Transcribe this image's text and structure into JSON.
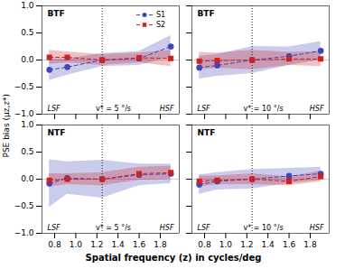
{
  "chart_data": [
    {
      "type": "line",
      "title": "BTF",
      "annotations": [
        "LSF",
        "v* = 5 °/s",
        "HSF"
      ],
      "ylabel": "PSE bias (μz,z*)",
      "legend": "upper right",
      "tick_labels": "y",
      "x": [
        0.75,
        0.92,
        1.25,
        1.6,
        1.9
      ],
      "series": [
        {
          "name": "S1",
          "color": "#4444bb",
          "marker": "circle",
          "line_style": "dashed",
          "values": [
            -0.18,
            -0.13,
            0.0,
            0.03,
            0.25
          ],
          "ylow": [
            -0.38,
            -0.28,
            -0.12,
            -0.1,
            0.05
          ],
          "yhigh": [
            0.02,
            0.02,
            0.12,
            0.16,
            0.45
          ]
        },
        {
          "name": "S2",
          "color": "#cc2222",
          "marker": "square",
          "line_style": "dashed",
          "values": [
            0.05,
            0.05,
            0.0,
            0.04,
            0.03
          ],
          "ylow": [
            -0.08,
            -0.05,
            -0.1,
            -0.05,
            -0.12
          ],
          "yhigh": [
            0.18,
            0.15,
            0.1,
            0.13,
            0.18
          ]
        }
      ],
      "vlines": [
        1.25
      ],
      "hlines": [
        0.0
      ],
      "xlim": [
        0.68,
        1.98
      ],
      "ylim": [
        -1.0,
        1.0
      ],
      "xticks": [
        0.8,
        {
          "value": 1.0,
          "label": "1.0"
        },
        1.2,
        1.4,
        1.6,
        1.8
      ],
      "yticks": [
        {
          "value": -1.0,
          "label": "−1.0"
        },
        {
          "value": -0.5,
          "label": "−0.5"
        },
        {
          "value": 0.0,
          "label": "0.0"
        },
        0.5,
        {
          "value": 1.0,
          "label": "1.0"
        }
      ]
    },
    {
      "type": "line",
      "title": "BTF",
      "annotations": [
        "LSF",
        "v* = 10 °/s",
        "HSF"
      ],
      "tick_labels": false,
      "x": [
        0.75,
        0.92,
        1.25,
        1.6,
        1.9
      ],
      "series": [
        {
          "name": "S1",
          "color": "#4444bb",
          "marker": "circle",
          "line_style": "dashed",
          "values": [
            -0.14,
            -0.1,
            0.0,
            0.07,
            0.17
          ],
          "ylow": [
            -0.35,
            -0.3,
            -0.25,
            -0.1,
            0.0
          ],
          "yhigh": [
            0.07,
            0.1,
            0.25,
            0.24,
            0.34
          ]
        },
        {
          "name": "S2",
          "color": "#cc2222",
          "marker": "square",
          "line_style": "dashed",
          "values": [
            -0.02,
            -0.01,
            0.0,
            0.02,
            0.02
          ],
          "ylow": [
            -0.18,
            -0.15,
            -0.18,
            -0.1,
            -0.12
          ],
          "yhigh": [
            0.14,
            0.13,
            0.18,
            0.14,
            0.16
          ]
        }
      ],
      "vlines": [
        1.25
      ],
      "hlines": [
        0.0
      ],
      "xlim": [
        0.68,
        1.98
      ],
      "ylim": [
        -1.0,
        1.0
      ],
      "xticks": [
        0.8,
        {
          "value": 1.0,
          "label": "1.0"
        },
        1.2,
        1.4,
        1.6,
        1.8
      ],
      "yticks": [
        {
          "value": -1.0,
          "label": "−1.0"
        },
        {
          "value": -0.5,
          "label": "−0.5"
        },
        {
          "value": 0.0,
          "label": "0.0"
        },
        0.5,
        {
          "value": 1.0,
          "label": "1.0"
        }
      ]
    },
    {
      "type": "line",
      "title": "NTF",
      "annotations": [
        "LSF",
        "v* = 5 °/s",
        "HSF"
      ],
      "xlabel": "Spatial frequency (z) in cycles/deg",
      "x": [
        0.75,
        0.92,
        1.25,
        1.6,
        1.9
      ],
      "series": [
        {
          "name": "S1",
          "color": "#4444bb",
          "marker": "circle",
          "line_style": "dashed",
          "values": [
            -0.08,
            0.02,
            0.0,
            0.08,
            0.1
          ],
          "ylow": [
            -0.52,
            -0.28,
            -0.35,
            -0.12,
            -0.08
          ],
          "yhigh": [
            0.36,
            0.32,
            0.35,
            0.28,
            0.28
          ]
        },
        {
          "name": "S2",
          "color": "#cc2222",
          "marker": "square",
          "line_style": "dashed",
          "values": [
            -0.02,
            0.0,
            0.0,
            0.1,
            0.12
          ],
          "ylow": [
            -0.14,
            -0.1,
            -0.12,
            -0.02,
            0.0
          ],
          "yhigh": [
            0.1,
            0.1,
            0.12,
            0.22,
            0.24
          ]
        }
      ],
      "vlines": [
        1.25
      ],
      "hlines": [
        0.0
      ],
      "xlim": [
        0.68,
        1.98
      ],
      "ylim": [
        -1.0,
        1.0
      ],
      "xticks": [
        0.8,
        {
          "value": 1.0,
          "label": "1.0"
        },
        1.2,
        1.4,
        1.6,
        1.8
      ],
      "yticks": [
        {
          "value": -1.0,
          "label": "−1.0"
        },
        {
          "value": -0.5,
          "label": "−0.5"
        },
        {
          "value": 0.0,
          "label": "0.0"
        },
        0.5,
        {
          "value": 1.0,
          "label": "1.0"
        }
      ]
    },
    {
      "type": "line",
      "title": "NTF",
      "annotations": [
        "LSF",
        "v* = 10 °/s",
        "HSF"
      ],
      "tick_labels": "x",
      "x": [
        0.75,
        0.92,
        1.25,
        1.6,
        1.9
      ],
      "series": [
        {
          "name": "S1",
          "color": "#4444bb",
          "marker": "circle",
          "line_style": "dashed",
          "values": [
            -0.1,
            -0.04,
            0.0,
            0.06,
            0.1
          ],
          "ylow": [
            -0.28,
            -0.2,
            -0.18,
            -0.08,
            -0.02
          ],
          "yhigh": [
            0.08,
            0.12,
            0.18,
            0.2,
            0.22
          ]
        },
        {
          "name": "S2",
          "color": "#cc2222",
          "marker": "square",
          "line_style": "dashed",
          "values": [
            -0.04,
            -0.02,
            0.0,
            -0.04,
            0.05
          ],
          "ylow": [
            -0.14,
            -0.1,
            -0.1,
            -0.12,
            -0.05
          ],
          "yhigh": [
            0.06,
            0.06,
            0.1,
            0.04,
            0.15
          ]
        }
      ],
      "vlines": [
        1.25
      ],
      "hlines": [
        0.0
      ],
      "xlim": [
        0.68,
        1.98
      ],
      "ylim": [
        -1.0,
        1.0
      ],
      "xticks": [
        0.8,
        {
          "value": 1.0,
          "label": "1.0"
        },
        1.2,
        1.4,
        1.6,
        1.8
      ],
      "yticks": [
        {
          "value": -1.0,
          "label": "−1.0"
        },
        {
          "value": -0.5,
          "label": "−0.5"
        },
        {
          "value": 0.0,
          "label": "0.0"
        },
        0.5,
        {
          "value": 1.0,
          "label": "1.0"
        }
      ]
    }
  ]
}
